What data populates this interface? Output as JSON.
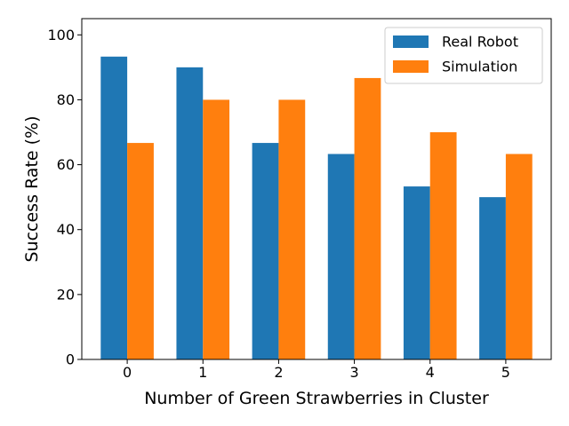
{
  "chart_data": {
    "type": "bar",
    "title": "",
    "xlabel": "Number of Green Strawberries in Cluster",
    "ylabel": "Success Rate (%)",
    "categories": [
      "0",
      "1",
      "2",
      "3",
      "4",
      "5"
    ],
    "series": [
      {
        "name": "Real Robot",
        "color": "#1f77b4",
        "values": [
          93.3,
          90.0,
          66.7,
          63.3,
          53.3,
          50.0
        ]
      },
      {
        "name": "Simulation",
        "color": "#ff7f0e",
        "values": [
          66.7,
          80.0,
          80.0,
          86.7,
          70.0,
          63.3
        ]
      }
    ],
    "ylim": [
      0,
      105
    ],
    "yticks": [
      "0",
      "20",
      "40",
      "60",
      "80",
      "100"
    ],
    "grid": false,
    "legend_position": "top-right"
  }
}
